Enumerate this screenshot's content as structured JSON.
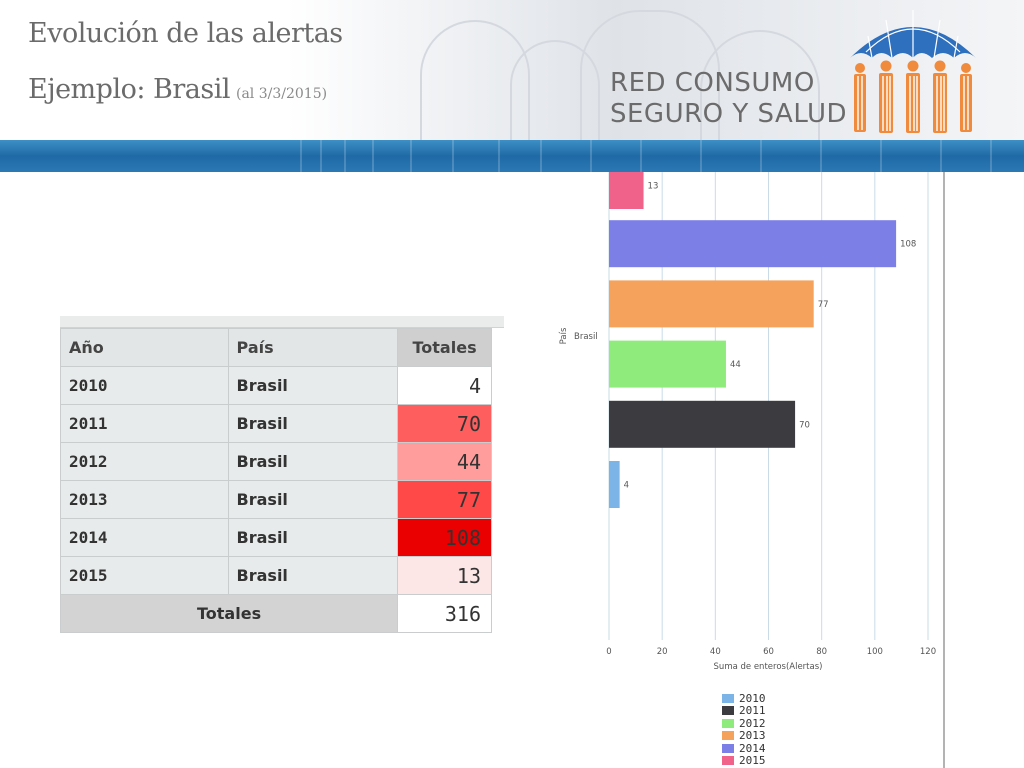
{
  "header": {
    "title": "Evolución de las alertas",
    "subtitle_main": "Ejemplo: Brasil",
    "subtitle_date": "(al 3/3/2015)",
    "brand_line1": "RED CONSUMO",
    "brand_line2": "SEGURO Y SALUD"
  },
  "table": {
    "headers": [
      "Año",
      "País",
      "Totales"
    ],
    "rows": [
      {
        "year": "2010",
        "country": "Brasil",
        "total": "4",
        "bg": "#ffffff"
      },
      {
        "year": "2011",
        "country": "Brasil",
        "total": "70",
        "bg": "#ff5e5e"
      },
      {
        "year": "2012",
        "country": "Brasil",
        "total": "44",
        "bg": "#ff9c9c"
      },
      {
        "year": "2013",
        "country": "Brasil",
        "total": "77",
        "bg": "#ff4848"
      },
      {
        "year": "2014",
        "country": "Brasil",
        "total": "108",
        "bg": "#ea0000"
      },
      {
        "year": "2015",
        "country": "Brasil",
        "total": "13",
        "bg": "#fde6e6"
      }
    ],
    "footer_label": "Totales",
    "footer_value": "316"
  },
  "chart_data": {
    "type": "bar",
    "orientation": "horizontal",
    "categories": [
      "2015",
      "2014",
      "2013",
      "2012",
      "2011",
      "2010"
    ],
    "values": [
      13,
      108,
      77,
      44,
      70,
      4
    ],
    "colors": [
      "#f0628a",
      "#7b7fe6",
      "#f5a25c",
      "#8fec7c",
      "#3c3c40",
      "#7db4e8"
    ],
    "xlabel": "Suma de enteros(Alertas)",
    "ylabel": "País",
    "group_label": "Brasil",
    "xlim": [
      0,
      120
    ],
    "xticks": [
      0,
      20,
      40,
      60,
      80,
      100,
      120
    ],
    "grid": true,
    "legend": [
      {
        "label": "2010",
        "color": "#7db4e8"
      },
      {
        "label": "2011",
        "color": "#3c3c40"
      },
      {
        "label": "2012",
        "color": "#8fec7c"
      },
      {
        "label": "2013",
        "color": "#f5a25c"
      },
      {
        "label": "2014",
        "color": "#7b7fe6"
      },
      {
        "label": "2015",
        "color": "#f0628a"
      }
    ],
    "legend_position": "bottom"
  }
}
